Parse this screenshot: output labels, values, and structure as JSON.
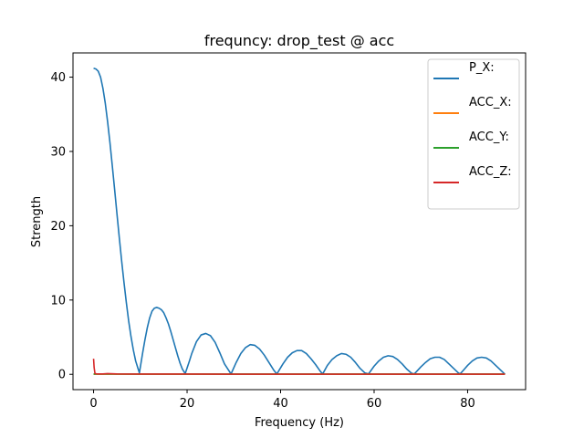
{
  "chart_data": {
    "type": "line",
    "title": "frequncy: drop_test @ acc",
    "xlabel": "Frequency (Hz)",
    "ylabel": "Strength",
    "xlim": [
      -4.4,
      92.4
    ],
    "ylim": [
      -2.06,
      43.26
    ],
    "xticks": [
      0,
      20,
      40,
      60,
      80
    ],
    "yticks": [
      0,
      10,
      20,
      30,
      40
    ],
    "grid": false,
    "legend": {
      "placement": "top-right"
    },
    "series": [
      {
        "name": "P_X:",
        "color": "#1f77b4",
        "x": [
          0,
          0.5,
          1,
          1.5,
          2,
          2.5,
          3,
          3.5,
          4,
          4.5,
          5,
          5.5,
          6,
          6.5,
          7,
          7.5,
          8,
          8.5,
          9,
          9.5,
          9.8,
          10.5,
          11,
          11.5,
          12,
          12.5,
          13,
          13.5,
          14,
          14.5,
          15,
          15.5,
          16,
          16.5,
          17,
          17.5,
          18,
          18.5,
          19,
          19.6,
          20.5,
          21,
          22,
          23,
          24,
          25,
          26,
          27,
          28,
          29.4,
          30.5,
          31.5,
          32.5,
          33.5,
          34.5,
          35.5,
          36.5,
          37.5,
          38.5,
          39.2,
          40.5,
          41.5,
          42.5,
          43.5,
          44.5,
          45.5,
          46.5,
          47.5,
          48.5,
          49,
          50,
          51,
          52,
          53,
          54,
          55,
          56,
          57,
          58,
          58.8,
          60,
          61,
          62,
          63,
          64,
          65,
          66,
          67,
          68,
          68.6,
          70,
          71,
          72,
          73,
          74,
          75,
          76,
          77,
          78,
          78.4,
          80,
          81,
          82,
          83,
          84,
          85,
          86,
          87,
          88
        ],
        "y": [
          41.2,
          41.1,
          40.8,
          40.0,
          38.5,
          36.5,
          34.0,
          31.2,
          28.1,
          24.9,
          21.6,
          18.4,
          15.3,
          12.4,
          9.7,
          7.2,
          5.1,
          3.3,
          1.8,
          0.8,
          0.2,
          2.9,
          4.7,
          6.3,
          7.6,
          8.5,
          8.9,
          9.0,
          8.9,
          8.7,
          8.3,
          7.6,
          6.8,
          5.8,
          4.7,
          3.6,
          2.5,
          1.5,
          0.7,
          0.1,
          1.8,
          2.8,
          4.4,
          5.3,
          5.5,
          5.2,
          4.3,
          2.9,
          1.4,
          0.05,
          1.6,
          2.8,
          3.6,
          4.0,
          3.9,
          3.4,
          2.6,
          1.6,
          0.6,
          0.05,
          1.4,
          2.3,
          2.9,
          3.2,
          3.2,
          2.8,
          2.1,
          1.3,
          0.4,
          0.05,
          1.2,
          2.0,
          2.5,
          2.8,
          2.7,
          2.3,
          1.6,
          0.8,
          0.2,
          0.05,
          1.1,
          1.8,
          2.3,
          2.5,
          2.4,
          2.0,
          1.4,
          0.7,
          0.15,
          0.05,
          1.0,
          1.6,
          2.1,
          2.3,
          2.3,
          2.0,
          1.4,
          0.8,
          0.2,
          0.05,
          1.2,
          1.8,
          2.2,
          2.3,
          2.2,
          1.8,
          1.2,
          0.6,
          0.0
        ]
      },
      {
        "name": "ACC_X:",
        "color": "#ff7f0e",
        "x": [
          0,
          88
        ],
        "y": [
          0.02,
          0.02
        ]
      },
      {
        "name": "ACC_Y:",
        "color": "#2ca02c",
        "x": [
          0,
          88
        ],
        "y": [
          0.03,
          0.03
        ]
      },
      {
        "name": "ACC_Z:",
        "color": "#d62728",
        "x": [
          0,
          0.12,
          0.3,
          0.6,
          1,
          2,
          3,
          5,
          10,
          20,
          40,
          60,
          88
        ],
        "y": [
          2.1,
          0.9,
          0.12,
          0.06,
          0.05,
          0.05,
          0.1,
          0.05,
          0.03,
          0.03,
          0.02,
          0.02,
          0.02
        ]
      }
    ]
  }
}
